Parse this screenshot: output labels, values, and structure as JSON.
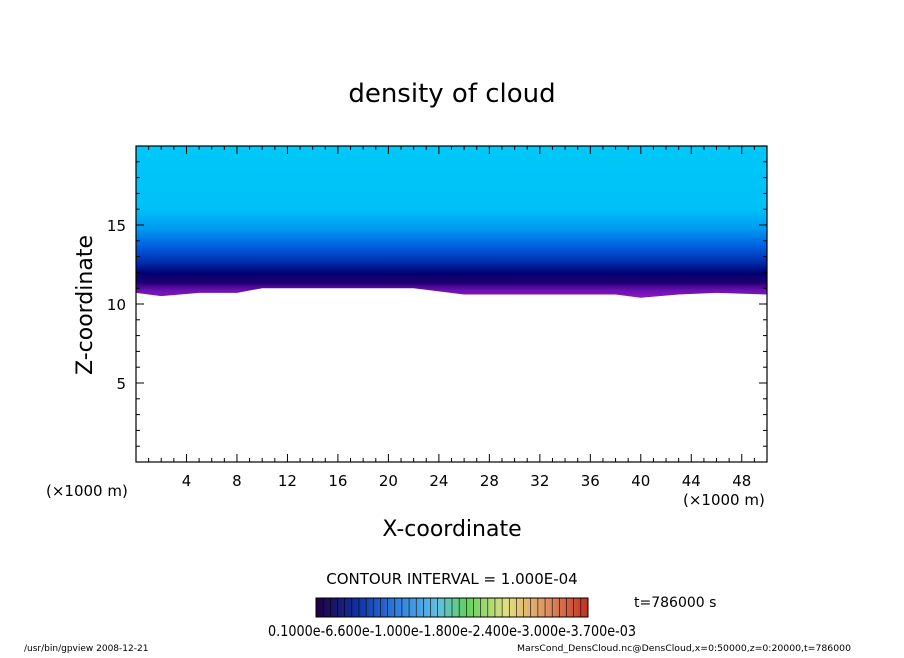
{
  "chart_data": {
    "type": "heatmap",
    "title": "density of cloud",
    "xlabel": "X-coordinate",
    "ylabel": "Z-coordinate",
    "x_unit": "(×1000 m)",
    "y_unit": "(×1000 m)",
    "xlim": [
      0,
      50
    ],
    "ylim": [
      0,
      20
    ],
    "x_ticks": [
      4,
      8,
      12,
      16,
      20,
      24,
      28,
      32,
      36,
      40,
      44,
      48
    ],
    "y_ticks": [
      5,
      10,
      15
    ],
    "grid": false,
    "contour_interval": "CONTOUR INTERVAL = 1.000E-04",
    "time": "t=786000 s",
    "colorbar_labels": "0.1000e-6.600e-1.000e-1.800e-2.400e-3.000e-3.700e-03",
    "cloud_base_z": 10.5,
    "cloud_base_profile": {
      "x": [
        0,
        2,
        5,
        8,
        10,
        14,
        18,
        22,
        26,
        30,
        34,
        38,
        40,
        43,
        46,
        50
      ],
      "z": [
        10.7,
        10.5,
        10.7,
        10.7,
        11.0,
        11.0,
        11.0,
        11.0,
        10.6,
        10.6,
        10.6,
        10.6,
        10.4,
        10.6,
        10.7,
        10.6
      ]
    },
    "colors": {
      "upper": "#00c8f8",
      "mid": "#0050e0",
      "dark": "#000060",
      "base": "#7a10b8"
    }
  },
  "footer": {
    "left": "/usr/bin/gpview   2008-12-21",
    "right": "MarsCond_DensCloud.nc@DensCloud,x=0:50000,z=0:20000,t=786000"
  }
}
